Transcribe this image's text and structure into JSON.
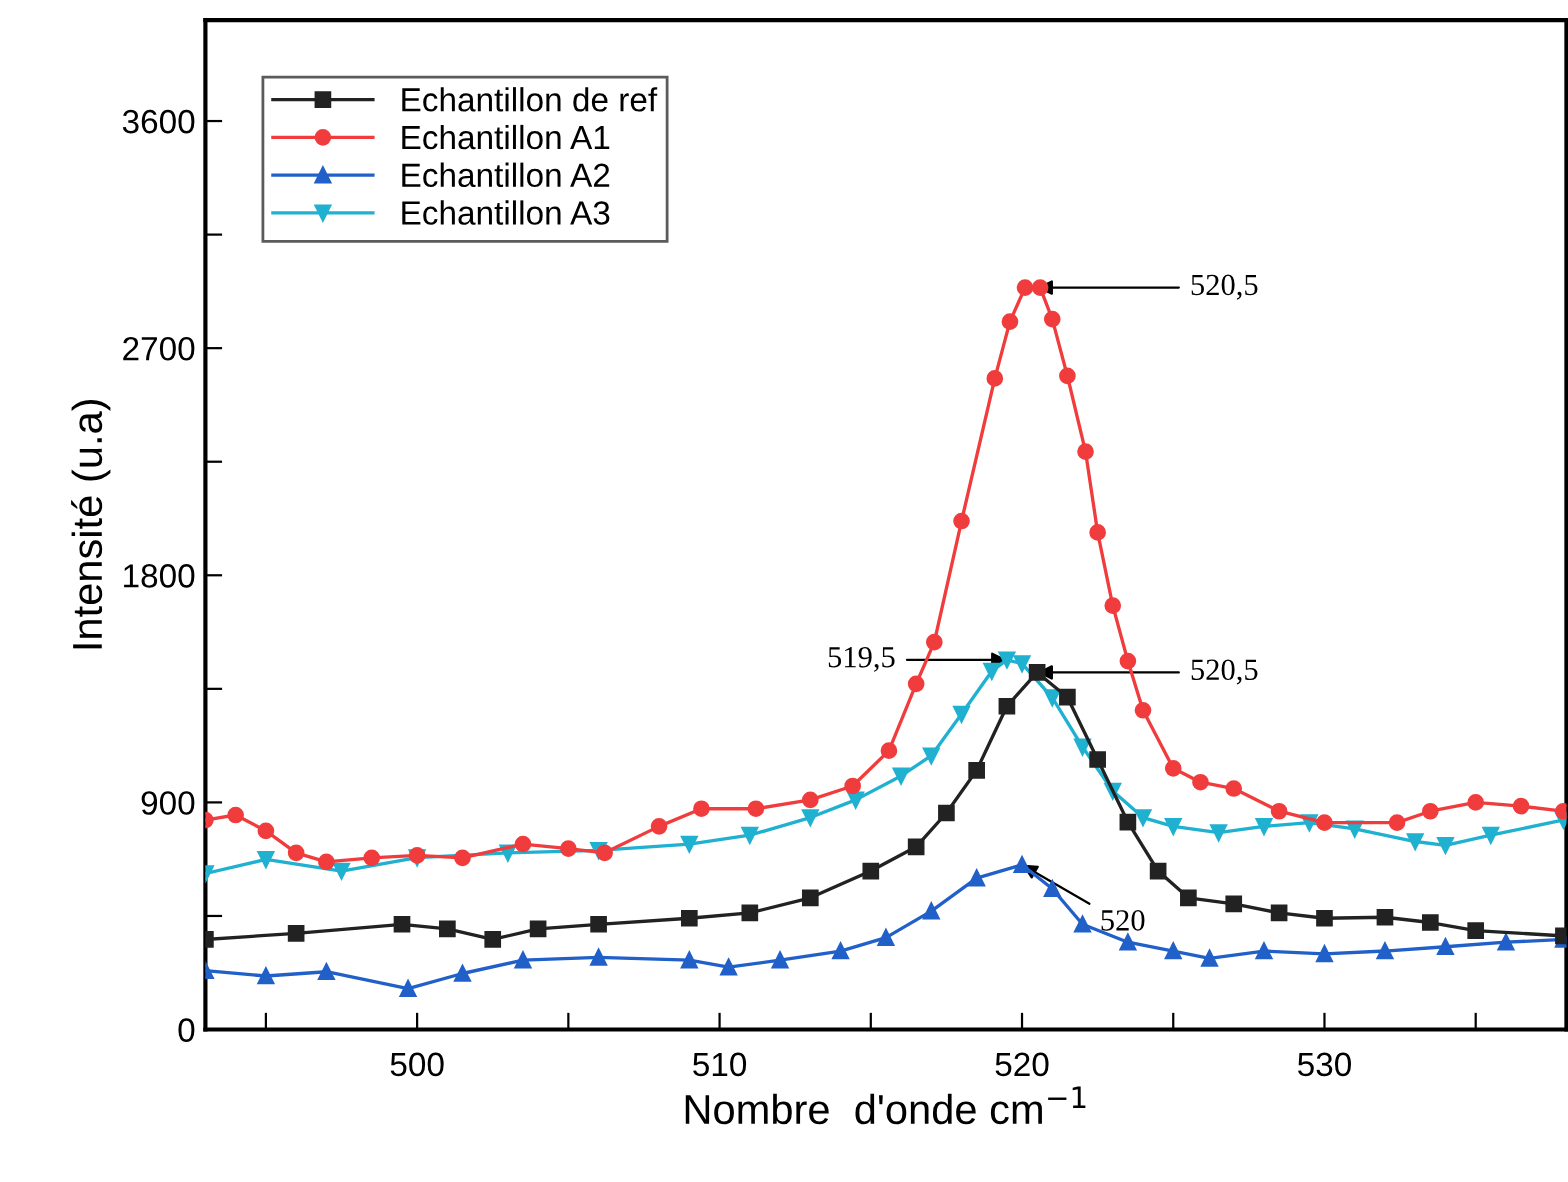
{
  "chart_data": {
    "type": "line",
    "xlabel": "Nombre  d'onde cm$^{−1}$",
    "ylabel": "Intensité (u.a)",
    "xlim": [
      493,
      538
    ],
    "ylim": [
      0,
      4000
    ],
    "xticks": [
      {
        "value": 495,
        "label": null
      },
      500,
      {
        "value": 505,
        "label": null
      },
      510,
      {
        "value": 515,
        "label": null
      },
      520,
      {
        "value": 525,
        "label": null
      },
      530,
      {
        "value": 535,
        "label": null
      }
    ],
    "yticks": [
      0,
      {
        "value": 450,
        "label": null
      },
      900,
      {
        "value": 1350,
        "label": null
      },
      1800,
      {
        "value": 2250,
        "label": null
      },
      2700,
      {
        "value": 3150,
        "label": null
      },
      3600
    ],
    "grid": false,
    "legend": "top left",
    "line_style": "solid",
    "series": [
      {
        "name": "Echantillon de ref",
        "color": "#222222",
        "marker": "square",
        "x": [
          493,
          496,
          499.5,
          501,
          502.5,
          504,
          506,
          509,
          511,
          513,
          515,
          516.5,
          517.5,
          518.5,
          519.5,
          520.5,
          521.5,
          522.5,
          523.5,
          524.5,
          525.5,
          527,
          528.5,
          530,
          532,
          533.5,
          535,
          537.9
        ],
        "values": [
          357,
          381,
          417,
          399,
          357,
          399,
          417,
          441,
          462,
          522,
          628,
          724,
          858,
          1027,
          1281,
          1415,
          1317,
          1070,
          822,
          628,
          522,
          498,
          462,
          441,
          445,
          424,
          392,
          371
        ]
      },
      {
        "name": "Echantillon A1",
        "color": "#f03c3c",
        "marker": "circle",
        "x": [
          493,
          494,
          495,
          496,
          497,
          498.5,
          500,
          501.5,
          503.5,
          505,
          506.2,
          508,
          509.4,
          511.2,
          513,
          514.4,
          515.6,
          516.5,
          517.1,
          518,
          519.1,
          519.6,
          520.1,
          520.6,
          521,
          521.5,
          522.1,
          522.5,
          523,
          523.5,
          524,
          525,
          525.9,
          527,
          528.5,
          530,
          532.4,
          533.5,
          535,
          536.5,
          537.9
        ],
        "values": [
          830,
          850,
          787,
          700,
          664,
          680,
          690,
          680,
          735,
          717,
          700,
          805,
          875,
          875,
          910,
          965,
          1105,
          1370,
          1535,
          2015,
          2580,
          2805,
          2940,
          2940,
          2815,
          2590,
          2290,
          1970,
          1680,
          1460,
          1265,
          1035,
          980,
          955,
          865,
          820,
          820,
          865,
          900,
          885,
          865
        ]
      },
      {
        "name": "Echantillon A2",
        "color": "#2060c8",
        "marker": "triangle",
        "x": [
          493,
          495,
          497,
          499.7,
          501.5,
          503.5,
          506,
          509,
          510.3,
          512,
          514,
          515.5,
          517,
          518.5,
          520,
          521,
          522,
          523.5,
          525,
          526.2,
          528,
          530,
          532,
          534,
          536,
          537.9
        ],
        "values": [
          233,
          212,
          229,
          162,
          222,
          275,
          286,
          275,
          247,
          275,
          311,
          364,
          469,
          600,
          653,
          558,
          417,
          346,
          311,
          282,
          311,
          300,
          311,
          328,
          346,
          357
        ]
      },
      {
        "name": "Echantillon A3",
        "color": "#20b0d0",
        "marker": "triangle_down",
        "x": [
          493,
          495,
          497.5,
          500,
          503,
          506,
          509,
          511,
          513,
          514.5,
          516,
          517,
          518,
          519,
          519.5,
          520,
          521,
          522,
          523,
          524,
          525,
          526.5,
          528,
          529.5,
          531,
          533,
          534,
          535.5,
          537.9
        ],
        "values": [
          618,
          674,
          628,
          681,
          700,
          710,
          735,
          770,
          840,
          910,
          1005,
          1085,
          1250,
          1420,
          1465,
          1450,
          1315,
          1120,
          945,
          840,
          805,
          780,
          805,
          820,
          795,
          745,
          730,
          770,
          830
        ]
      }
    ],
    "annotations": [
      {
        "text": "520,5",
        "x": 520.5,
        "y": 2940
      },
      {
        "text": "519,5",
        "x": 519.5,
        "y": 1465
      },
      {
        "text": "520,5",
        "x": 520.5,
        "y": 1415
      },
      {
        "text": "520",
        "x": 520,
        "y": 653
      }
    ]
  }
}
